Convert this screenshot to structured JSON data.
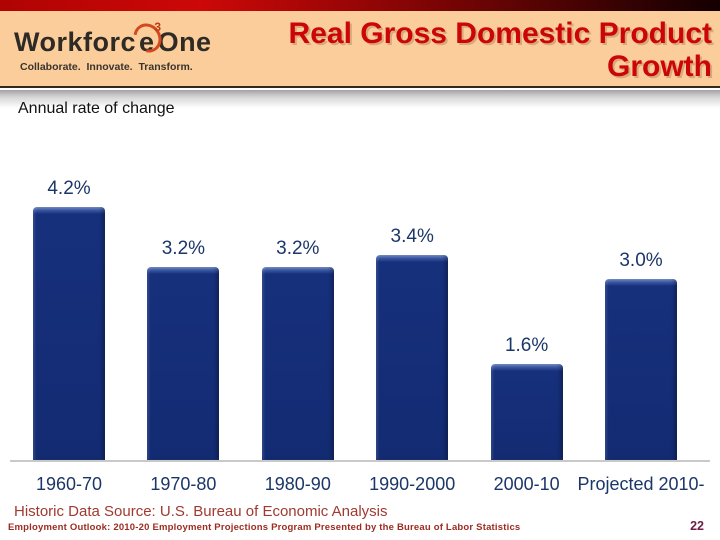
{
  "slide": {
    "logo": {
      "brand_prefix": "Workforc",
      "brand_e": "e",
      "brand_superscript": "3",
      "brand_suffix": "One",
      "tagline": "Collaborate.  Innovate.  Transform."
    },
    "title_line1": "Real Gross Domestic Product",
    "title_line2": "Growth",
    "subtitle": "Annual rate of change",
    "footer": {
      "source_text": "Historic Data Source: U.S. Bureau of Economic Analysis",
      "program_text": "Employment Outlook: 2010-20 Employment Projections Program Presented by the Bureau of Labor Statistics",
      "page_number": "22"
    },
    "colors": {
      "header_background": "#facd9b",
      "title_red": "#cc0606",
      "bar_navy": "#17307c",
      "label_navy": "#1b3668",
      "footer_red": "#a03a30",
      "page_number_maroon": "#701d45",
      "top_bar_red": "#cc0808"
    }
  },
  "chart_data": {
    "type": "bar",
    "title": "Real Gross Domestic Product Growth",
    "subtitle": "Annual rate of change",
    "categories": [
      "1960-70",
      "1970-80",
      "1980-90",
      "1990-2000",
      "2000-10",
      "Projected 2010-"
    ],
    "values": [
      4.2,
      3.2,
      3.2,
      3.4,
      1.6,
      3.0
    ],
    "value_labels": [
      "4.2%",
      "3.2%",
      "3.2%",
      "3.4%",
      "1.6%",
      "3.0%"
    ],
    "xlabel": "",
    "ylabel": "Annual rate of change (%)",
    "ylim": [
      0,
      4.5
    ],
    "grid": false,
    "legend": false,
    "bar_color": "#17307c"
  }
}
